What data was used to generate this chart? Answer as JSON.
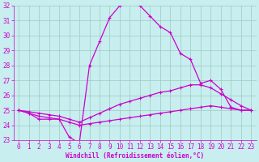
{
  "bg_color": "#c8eef0",
  "grid_color": "#99ccbb",
  "line_color": "#cc00cc",
  "xlim": [
    -0.5,
    23.5
  ],
  "ylim": [
    23,
    32
  ],
  "yticks": [
    23,
    24,
    25,
    26,
    27,
    28,
    29,
    30,
    31,
    32
  ],
  "xticks": [
    0,
    1,
    2,
    3,
    4,
    5,
    6,
    7,
    8,
    9,
    10,
    11,
    12,
    13,
    14,
    15,
    16,
    17,
    18,
    19,
    20,
    21,
    22,
    23
  ],
  "xlabel": "Windchill (Refroidissement éolien,°C)",
  "curve1_x": [
    0,
    1,
    2,
    3,
    4,
    5,
    6,
    7,
    8,
    9,
    10,
    11,
    12,
    13,
    14,
    15,
    16,
    17,
    18,
    19,
    20,
    21,
    22,
    23
  ],
  "curve1_y": [
    25.0,
    24.8,
    24.4,
    24.4,
    24.4,
    23.2,
    22.8,
    28.0,
    29.6,
    31.2,
    32.0,
    32.2,
    32.0,
    31.3,
    30.6,
    30.2,
    28.8,
    28.4,
    26.8,
    27.0,
    26.4,
    25.2,
    25.0,
    25.0
  ],
  "curve2_x": [
    0,
    1,
    2,
    3,
    4,
    5,
    6,
    7,
    8,
    9,
    10,
    11,
    12,
    13,
    14,
    15,
    16,
    17,
    18,
    19,
    20,
    21,
    22,
    23
  ],
  "curve2_y": [
    25.0,
    24.9,
    24.8,
    24.7,
    24.6,
    24.4,
    24.2,
    24.5,
    24.8,
    25.1,
    25.4,
    25.6,
    25.8,
    26.0,
    26.2,
    26.3,
    26.5,
    26.7,
    26.7,
    26.5,
    26.1,
    25.7,
    25.3,
    25.0
  ],
  "curve3_x": [
    0,
    1,
    2,
    3,
    4,
    5,
    6,
    7,
    8,
    9,
    10,
    11,
    12,
    13,
    14,
    15,
    16,
    17,
    18,
    19,
    20,
    21,
    22,
    23
  ],
  "curve3_y": [
    25.0,
    24.8,
    24.6,
    24.5,
    24.4,
    24.2,
    24.0,
    24.1,
    24.2,
    24.3,
    24.4,
    24.5,
    24.6,
    24.7,
    24.8,
    24.9,
    25.0,
    25.1,
    25.2,
    25.3,
    25.2,
    25.1,
    25.0,
    25.0
  ],
  "lw": 0.9,
  "ms": 3.0,
  "tick_fontsize": 5.5,
  "xlabel_fontsize": 5.5
}
